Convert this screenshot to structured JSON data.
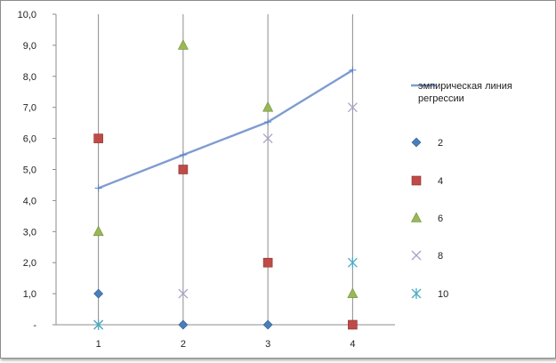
{
  "chart_data": {
    "type": "scatter",
    "x_ticks": [
      "1",
      "2",
      "3",
      "4"
    ],
    "y_ticks": [
      "-",
      "1,0",
      "2,0",
      "3,0",
      "4,0",
      "5,0",
      "6,0",
      "7,0",
      "8,0",
      "9,0",
      "10,0"
    ],
    "xlim": [
      0.5,
      4.5
    ],
    "ylim": [
      0,
      10
    ],
    "grid": "vertical",
    "legend_position": "right",
    "series": [
      {
        "name": "эмпирическая линия регрессии",
        "kind": "line",
        "color": "#7f9cd0",
        "x": [
          1,
          2,
          3,
          4
        ],
        "y": [
          4.4,
          5.47,
          6.53,
          8.2
        ]
      },
      {
        "name": "2",
        "kind": "diamond",
        "color": "#4a7ebb",
        "x": [
          1,
          2,
          3,
          4
        ],
        "y": [
          1,
          0,
          0,
          0
        ]
      },
      {
        "name": "4",
        "kind": "square",
        "color": "#be4b48",
        "x": [
          1,
          2,
          3,
          4
        ],
        "y": [
          6,
          5,
          2,
          0
        ]
      },
      {
        "name": "6",
        "kind": "triangle",
        "color": "#98b954",
        "x": [
          1,
          2,
          3,
          4
        ],
        "y": [
          3,
          9,
          7,
          1
        ]
      },
      {
        "name": "8",
        "kind": "x",
        "color": "#a5a5c8",
        "x": [
          1,
          2,
          3,
          4
        ],
        "y": [
          0,
          1,
          6,
          7
        ]
      },
      {
        "name": "10",
        "kind": "star",
        "color": "#4bacc6",
        "x": [
          1,
          4
        ],
        "y": [
          0,
          2
        ]
      }
    ]
  }
}
